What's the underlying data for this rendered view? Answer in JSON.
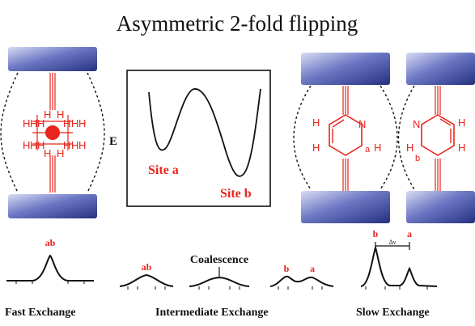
{
  "title": "Asymmetric 2-fold flipping",
  "energy_plot": {
    "axis_label": "E",
    "site_a_label": "Site a",
    "site_b_label": "Site b"
  },
  "rotor_left": {
    "h_labels": [
      "H",
      "H",
      "H",
      "H",
      "H",
      "H",
      "H",
      "H",
      "H",
      "H",
      "H",
      "H",
      "H",
      "H",
      "H",
      "H"
    ]
  },
  "rotor_site_a": {
    "atoms": {
      "n": "N",
      "h1": "H",
      "h2": "H",
      "h3": "H",
      "h4": "H",
      "site": "a"
    }
  },
  "rotor_site_b": {
    "atoms": {
      "n": "N",
      "h1": "H",
      "h2": "H",
      "h3": "H",
      "h4": "H",
      "site": "b"
    }
  },
  "spectra": {
    "fast": {
      "peak_label": "ab",
      "caption": "Fast Exchange"
    },
    "intermediate": {
      "caption": "Intermediate Exchange",
      "coalescence_label": "Coalescence",
      "broad_label": "ab",
      "split_labels": [
        "b",
        "a"
      ]
    },
    "slow": {
      "caption": "Slow Exchange",
      "peak_labels": [
        "b",
        "a"
      ],
      "delta_label": "Δν"
    }
  },
  "colors": {
    "stator_dark": "#2e3d8e",
    "stator_light": "#c6cdf0",
    "rotor_red": "#e8241c",
    "ink": "#111111"
  }
}
